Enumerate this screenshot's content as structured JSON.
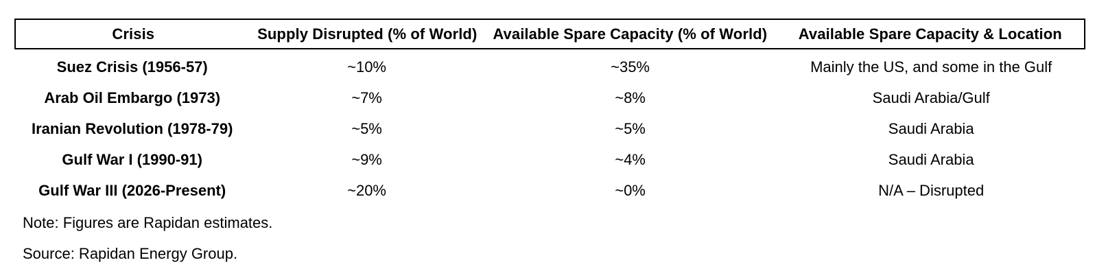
{
  "chart_data": {
    "type": "table",
    "title": "",
    "columns": [
      "Crisis",
      "Supply Disrupted (% of World)",
      "Available Spare Capacity (% of World)",
      "Available Spare Capacity & Location"
    ],
    "rows": [
      [
        "Suez Crisis (1956-57)",
        "~10%",
        "~35%",
        "Mainly the US, and some in the Gulf"
      ],
      [
        "Arab Oil Embargo (1973)",
        "~7%",
        "~8%",
        "Saudi Arabia/Gulf"
      ],
      [
        "Iranian Revolution (1978-79)",
        "~5%",
        "~5%",
        "Saudi Arabia"
      ],
      [
        "Gulf War I (1990-91)",
        "~9%",
        "~4%",
        "Saudi Arabia"
      ],
      [
        "Gulf War III (2026-Present)",
        "~20%",
        "~0%",
        "N/A – Disrupted"
      ]
    ],
    "note": "Note: Figures are Rapidan estimates.",
    "source": "Source: Rapidan Energy Group.",
    "layout": {
      "header_boxed": true,
      "body_borders": false,
      "cell_alignment": "center"
    },
    "colors": {
      "text": "#000000",
      "background": "#ffffff",
      "border": "#000000"
    }
  }
}
